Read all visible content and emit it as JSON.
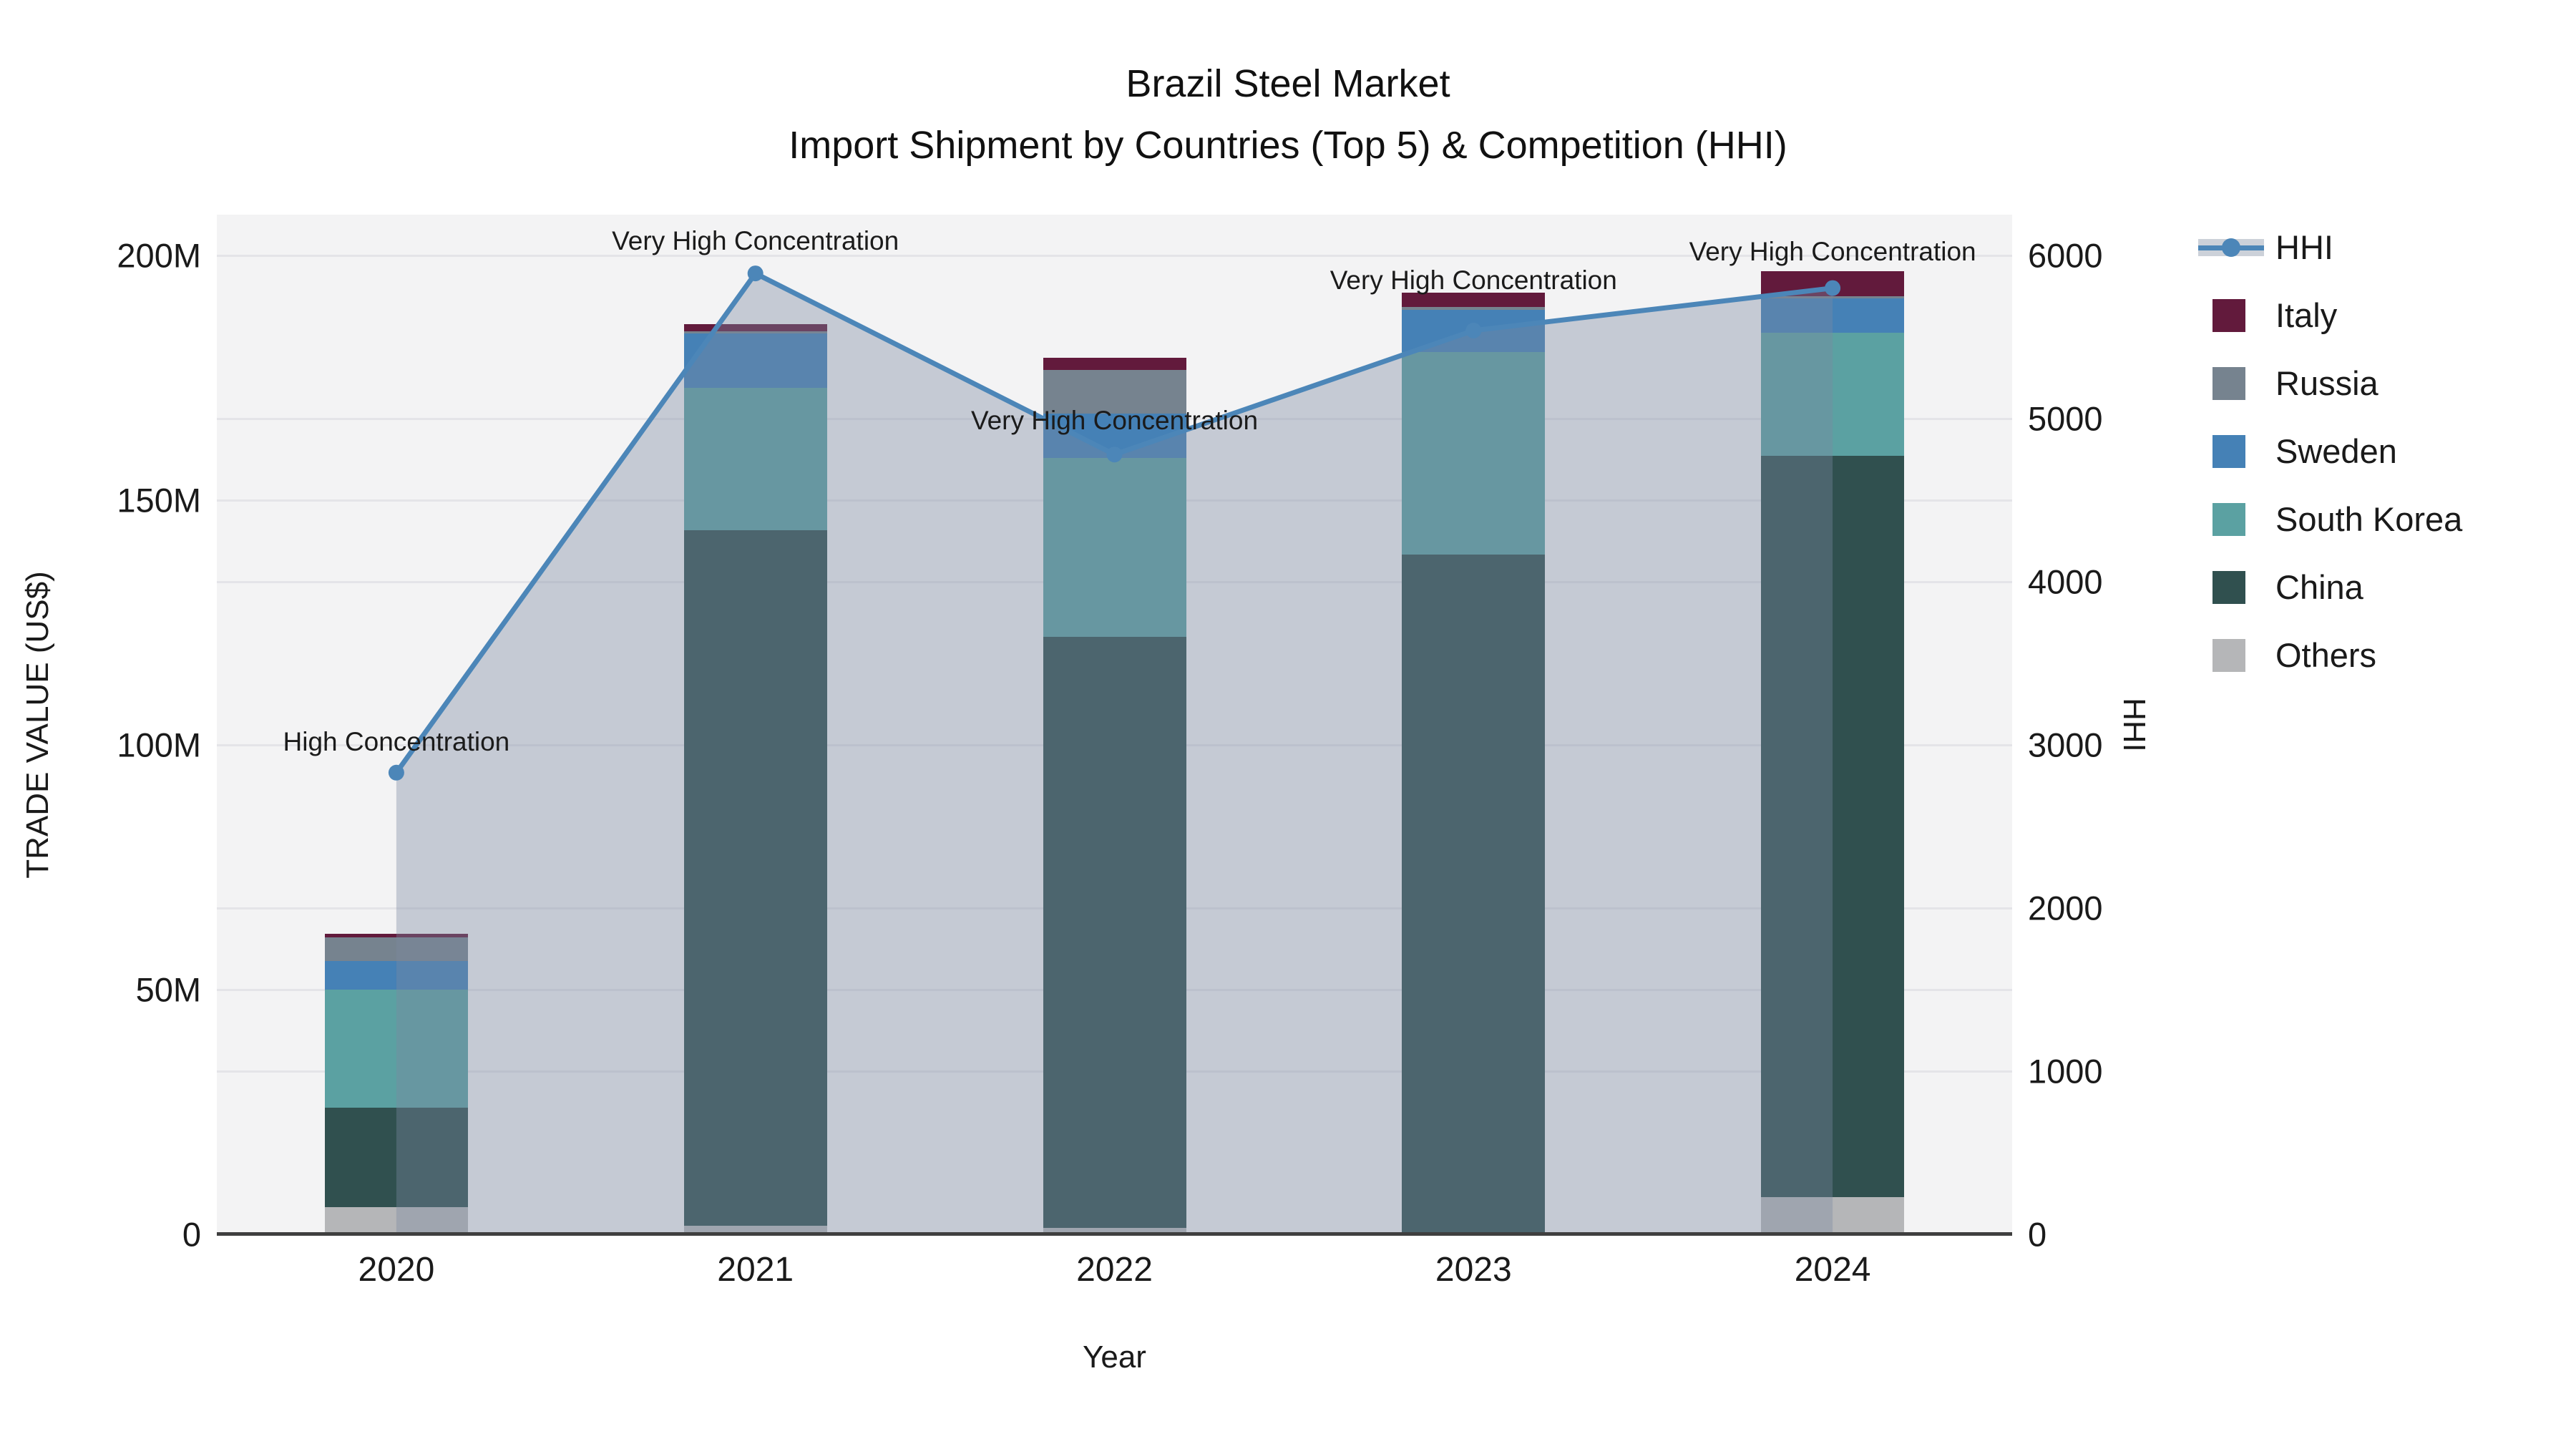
{
  "title": {
    "line1": "Brazil Steel Market",
    "line2": "Import Shipment by Countries (Top 5) & Competition (HHI)"
  },
  "axes": {
    "x": {
      "title": "Year",
      "tick_labels": [
        "2020",
        "2021",
        "2022",
        "2023",
        "2024"
      ]
    },
    "y_left": {
      "title": "TRADE VALUE (US$)",
      "tick_labels": [
        "0",
        "50M",
        "100M",
        "150M",
        "200M"
      ]
    },
    "y_right": {
      "title": "HHI",
      "tick_labels": [
        "0",
        "1000",
        "2000",
        "3000",
        "4000",
        "5000",
        "6000"
      ]
    }
  },
  "legend": [
    {
      "label": "HHI",
      "type": "line",
      "color": "#4c86b8"
    },
    {
      "label": "Italy",
      "type": "swatch",
      "color": "#621a3c"
    },
    {
      "label": "Russia",
      "type": "swatch",
      "color": "#76838f"
    },
    {
      "label": "Sweden",
      "type": "swatch",
      "color": "#4581b6"
    },
    {
      "label": "South Korea",
      "type": "swatch",
      "color": "#5ba1a2"
    },
    {
      "label": "China",
      "type": "swatch",
      "color": "#30504f"
    },
    {
      "label": "Others",
      "type": "swatch",
      "color": "#b5b6b8"
    }
  ],
  "colors": {
    "plot_bg": "#f3f3f4",
    "gridline": "#e4e4e8",
    "axis_line": "#3f3f3f",
    "hhi_line": "#4c86b8",
    "hhi_area_fill": "rgba(124,136,160,0.38)",
    "text": "#1a1a1a"
  },
  "chart_data": {
    "type": "bar+line",
    "title": "Brazil Steel Market — Import Shipment by Countries (Top 5) & Competition (HHI)",
    "xlabel": "Year",
    "ylabel_left": "TRADE VALUE (US$)",
    "ylabel_right": "HHI",
    "categories": [
      "2020",
      "2021",
      "2022",
      "2023",
      "2024"
    ],
    "bar_stack_order_note": "series listed bottom-to-top; values in millions of US$",
    "series": [
      {
        "name": "Others",
        "color": "#b5b6b8",
        "values": [
          5.6,
          1.8,
          1.3,
          0.3,
          7.6
        ]
      },
      {
        "name": "China",
        "color": "#30504f",
        "values": [
          20.3,
          142.0,
          120.8,
          138.5,
          151.5
        ]
      },
      {
        "name": "South Korea",
        "color": "#5ba1a2",
        "values": [
          24.1,
          29.2,
          36.5,
          41.4,
          25.1
        ]
      },
      {
        "name": "Sweden",
        "color": "#4581b6",
        "values": [
          5.8,
          11.0,
          9.0,
          8.7,
          7.0
        ]
      },
      {
        "name": "Russia",
        "color": "#76838f",
        "values": [
          4.8,
          0.5,
          9.0,
          0.5,
          0.5
        ]
      },
      {
        "name": "Italy",
        "color": "#621a3c",
        "values": [
          0.8,
          1.5,
          2.5,
          3.0,
          5.0
        ]
      }
    ],
    "line_series": {
      "name": "HHI",
      "axis": "right",
      "color": "#4c86b8",
      "values": [
        2830,
        5890,
        4780,
        5540,
        5800
      ]
    },
    "annotations": [
      {
        "x": "2020",
        "text": "High Concentration",
        "dy": -43
      },
      {
        "x": "2021",
        "text": "Very High Concentration",
        "dy": -45
      },
      {
        "x": "2022",
        "text": "Very High Concentration",
        "dy": -47
      },
      {
        "x": "2023",
        "text": "Very High Concentration",
        "dy": -70
      },
      {
        "x": "2024",
        "text": "Very High Concentration",
        "dy": -51
      }
    ],
    "left_tick_values": [
      0,
      50,
      100,
      150,
      200
    ],
    "right_tick_values": [
      0,
      1000,
      2000,
      3000,
      4000,
      5000,
      6000
    ],
    "ylim_left": [
      0,
      208.3
    ],
    "ylim_right": [
      0,
      6250
    ],
    "grid": true,
    "legend_position": "right"
  }
}
